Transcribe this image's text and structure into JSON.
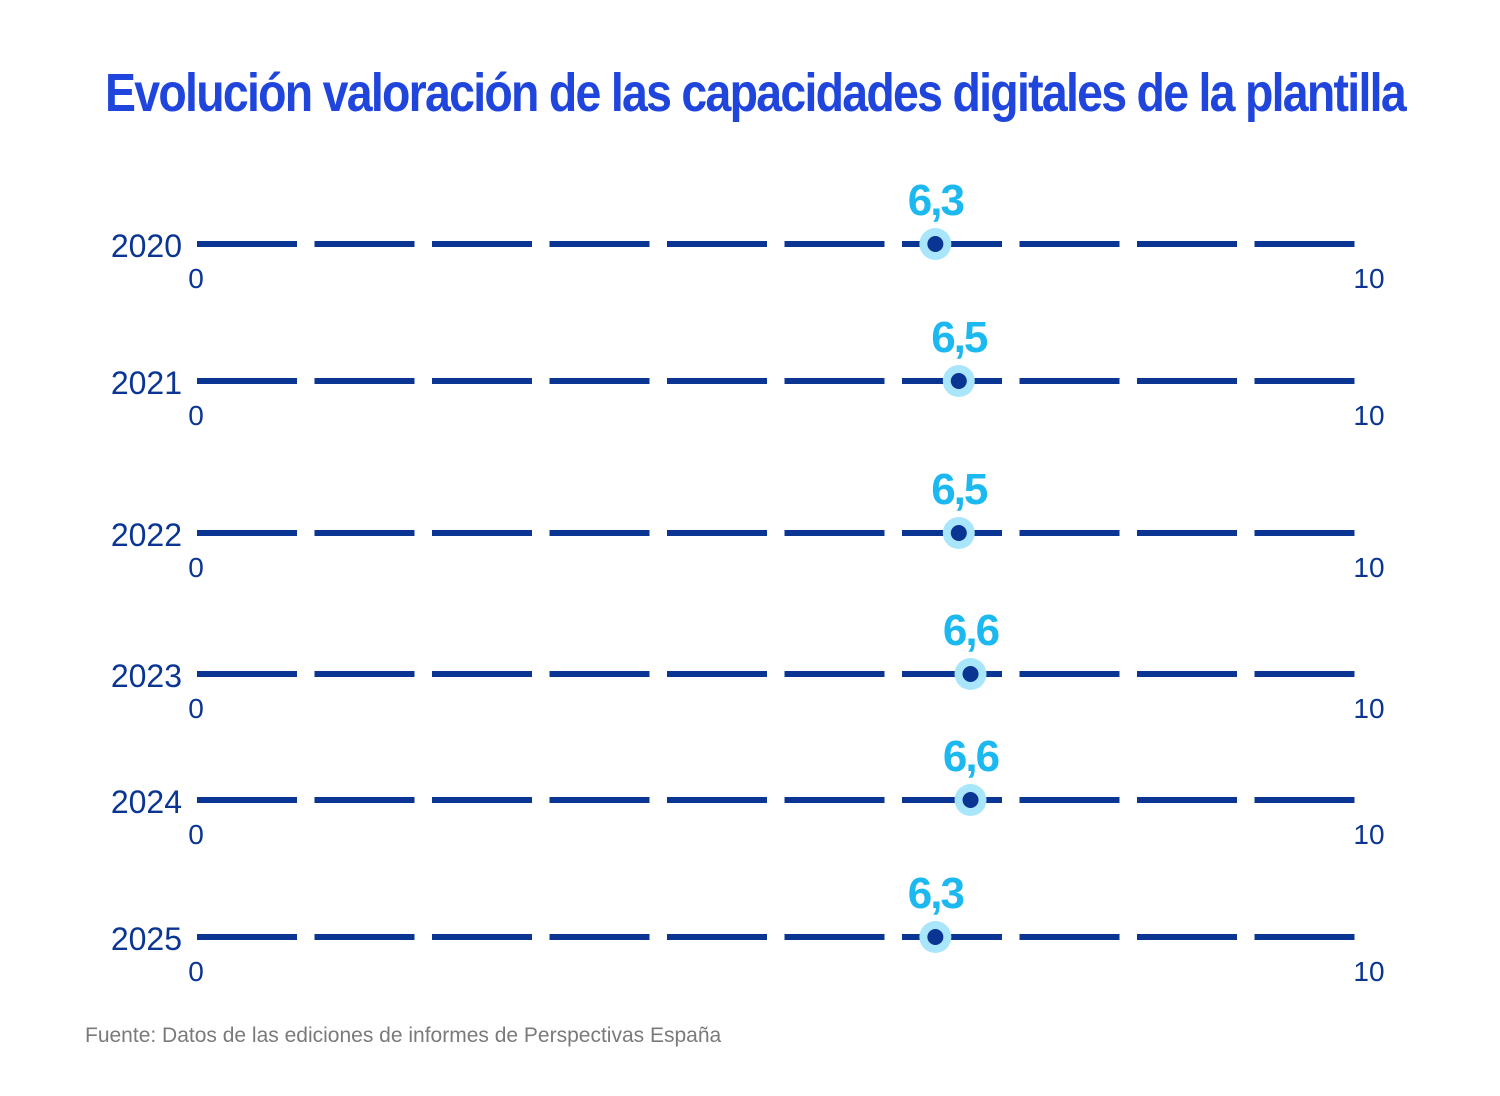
{
  "title": "Evolución valoración de las capacidades digitales de la plantilla",
  "source": "Fuente: Datos de las ediciones de informes de Perspectivas España",
  "colors": {
    "title": "#1f45dc",
    "line": "#0a3592",
    "value_label": "#1cb8f0",
    "marker_ring": "#a9e6fb",
    "marker_dot": "#0a3592",
    "year_label": "#0a3592",
    "axis_label": "#0a3592",
    "source": "#7a7a7a"
  },
  "chart_data": {
    "type": "scatter",
    "title": "Evolución valoración de las capacidades digitales de la plantilla",
    "xlim": [
      0,
      10
    ],
    "axis_min_label": "0",
    "axis_max_label": "10",
    "categories": [
      "2020",
      "2021",
      "2022",
      "2023",
      "2024",
      "2025"
    ],
    "values": [
      6.3,
      6.5,
      6.5,
      6.6,
      6.6,
      6.3
    ],
    "value_labels": [
      "6,3",
      "6,5",
      "6,5",
      "6,6",
      "6,6",
      "6,3"
    ],
    "grid": false,
    "legend": "none"
  }
}
